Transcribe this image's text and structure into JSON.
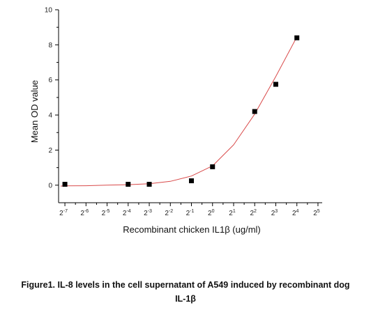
{
  "chart_data": {
    "type": "scatter",
    "xlabel": "Recombinant chicken IL1β (ug/ml)",
    "ylabel": "Mean OD value",
    "xscale": "log2",
    "xlim_exp": [
      -7.3,
      5.2
    ],
    "ylim": [
      -1,
      10
    ],
    "x_ticks": [
      {
        "base": "2",
        "exp": "-7"
      },
      {
        "base": "2",
        "exp": "-6"
      },
      {
        "base": "2",
        "exp": "-5"
      },
      {
        "base": "2",
        "exp": "-4"
      },
      {
        "base": "2",
        "exp": "-3"
      },
      {
        "base": "2",
        "exp": "-2"
      },
      {
        "base": "2",
        "exp": "-1"
      },
      {
        "base": "2",
        "exp": "0"
      },
      {
        "base": "2",
        "exp": "1"
      },
      {
        "base": "2",
        "exp": "2"
      },
      {
        "base": "2",
        "exp": "3"
      },
      {
        "base": "2",
        "exp": "4"
      },
      {
        "base": "2",
        "exp": "5"
      }
    ],
    "y_ticks": [
      0,
      2,
      4,
      6,
      8,
      10
    ],
    "grid": false,
    "series": [
      {
        "marker": "square",
        "x": [
          0.0078125,
          0.0625,
          0.125,
          0.5,
          1,
          4,
          8,
          16
        ],
        "y": [
          0.05,
          0.05,
          0.05,
          0.25,
          1.05,
          4.2,
          5.75,
          8.4
        ]
      }
    ],
    "fit_curve": {
      "x": [
        0.0068,
        0.0078125,
        0.0156,
        0.03125,
        0.0625,
        0.125,
        0.25,
        0.5,
        1,
        2,
        4,
        8,
        16
      ],
      "y": [
        -0.05,
        -0.04,
        -0.03,
        0.0,
        0.03,
        0.08,
        0.22,
        0.52,
        1.1,
        2.3,
        4.05,
        6.2,
        8.45
      ]
    },
    "colors": {
      "points": "#000000",
      "fit": "#d94a4a",
      "axis": "#000000"
    }
  },
  "caption": {
    "line1": "Figure1. IL-8 levels in the cell supernatant of A549 induced by recombinant dog",
    "line2": "IL-1β"
  }
}
